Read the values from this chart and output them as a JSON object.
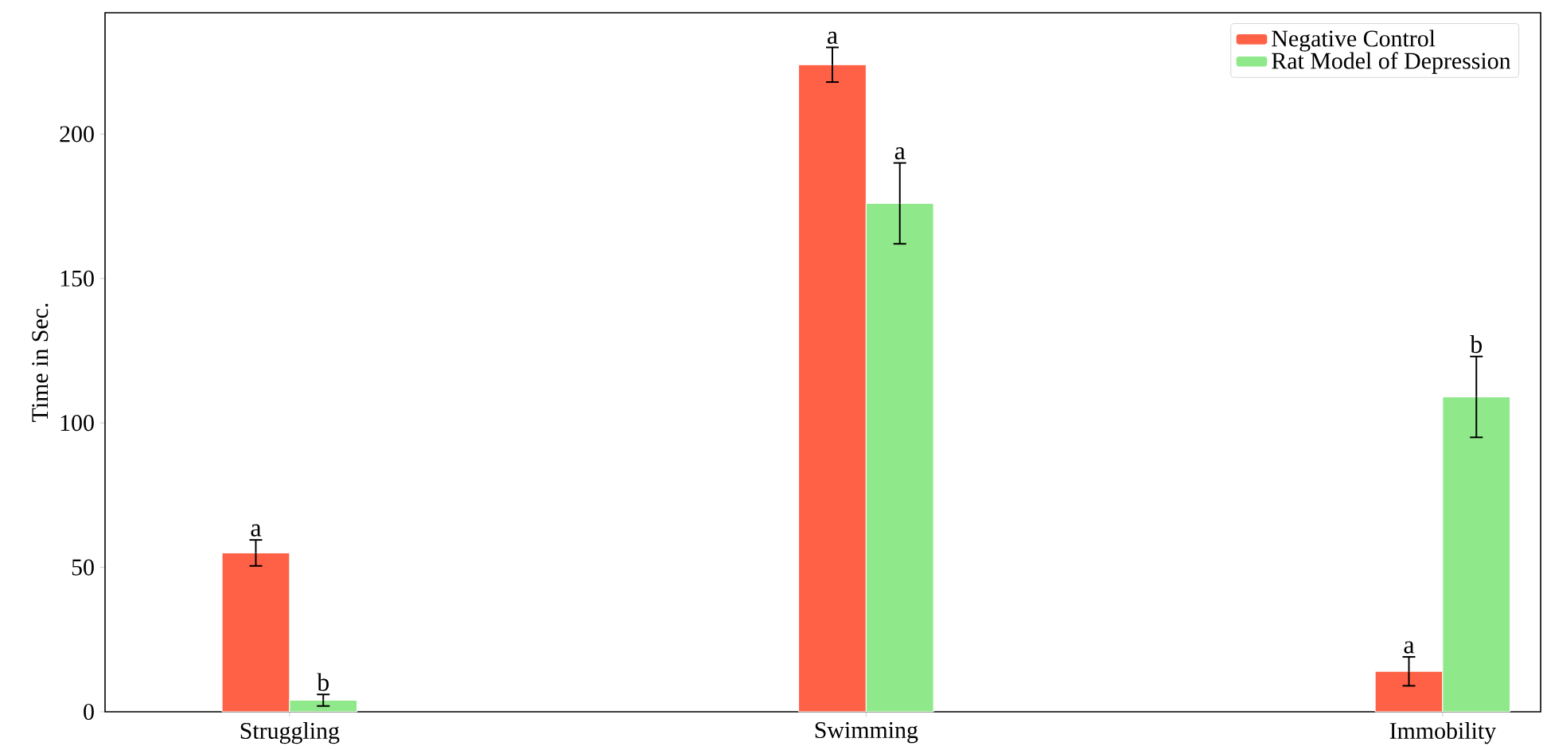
{
  "chart_data": {
    "type": "bar",
    "ylabel": "Time in Sec.",
    "categories": [
      "Struggling",
      "Swimming",
      "Immobility"
    ],
    "series": [
      {
        "name": "Negative Control",
        "color": "#fe6145",
        "values": [
          55,
          224,
          14
        ],
        "errors": [
          4.5,
          6,
          5
        ]
      },
      {
        "name": "Rat Model of Depression",
        "color": "#8fe98a",
        "values": [
          4,
          176,
          109
        ],
        "errors": [
          2,
          14,
          14
        ]
      }
    ],
    "ylim": [
      0,
      242
    ],
    "yticks": [
      0,
      50,
      100,
      150,
      200
    ],
    "legend": "top right",
    "annotations": [
      {
        "text": "a",
        "x": "Struggling",
        "y": 55
      },
      {
        "text": "b",
        "x": "Struggling",
        "y": 4
      },
      {
        "text": "a",
        "x": "Swimming",
        "y": 224
      },
      {
        "text": "a",
        "x": "Swimming",
        "y": 176
      },
      {
        "text": "a",
        "x": "Immobility",
        "y": 14
      },
      {
        "text": "b",
        "x": "Immobility",
        "y": 109
      }
    ]
  }
}
